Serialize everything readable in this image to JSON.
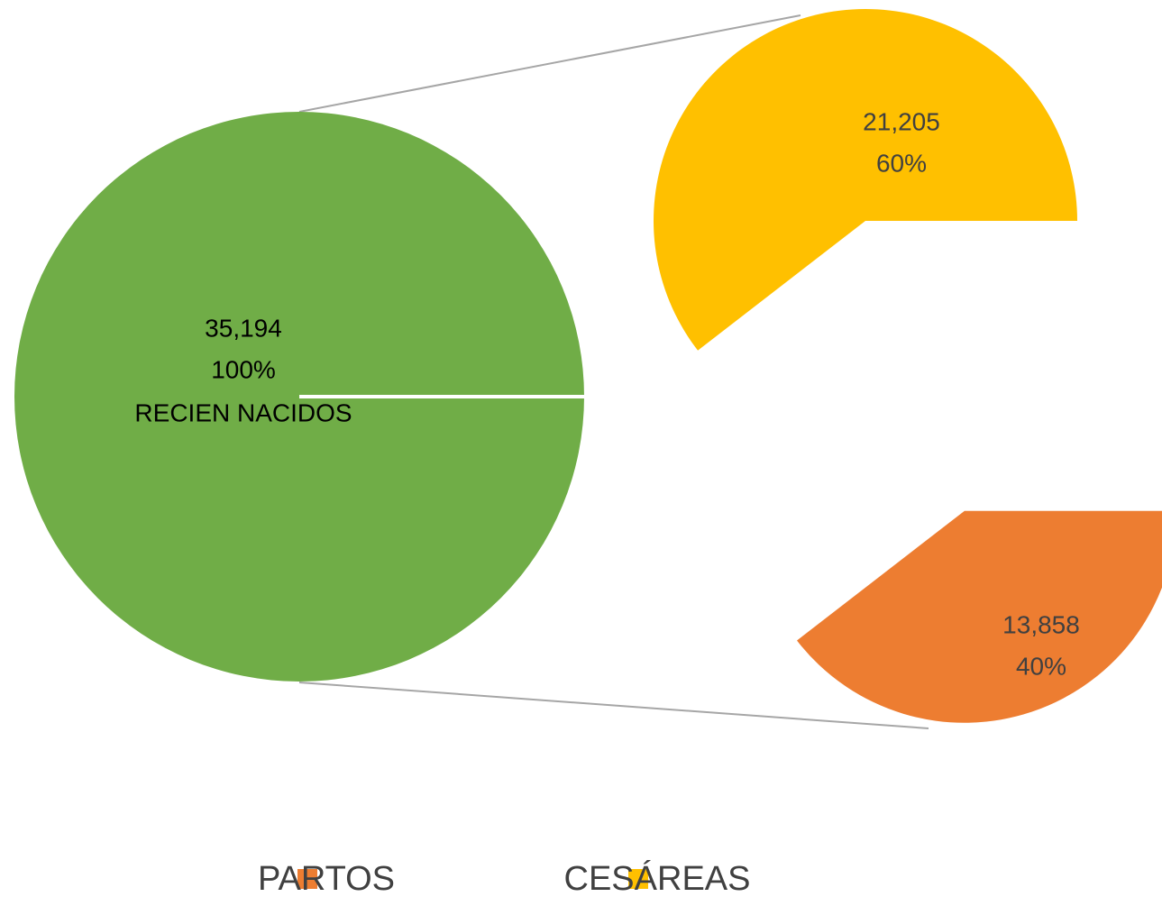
{
  "chart_data": {
    "type": "pie_of_pie",
    "total": 35194,
    "total_label": "35,194",
    "total_percent": 100,
    "total_percent_label": "100%",
    "total_name": "RECIEN NACIDOS",
    "total_color": "#70ad47",
    "categories": [
      "PARTOS",
      "CESÁREAS"
    ],
    "values": [
      13858,
      21205
    ],
    "value_labels": [
      "13,858",
      "21,205"
    ],
    "percents": [
      40,
      60
    ],
    "percent_labels": [
      "40%",
      "60%"
    ],
    "colors": [
      "#ed7d31",
      "#ffc000"
    ]
  }
}
